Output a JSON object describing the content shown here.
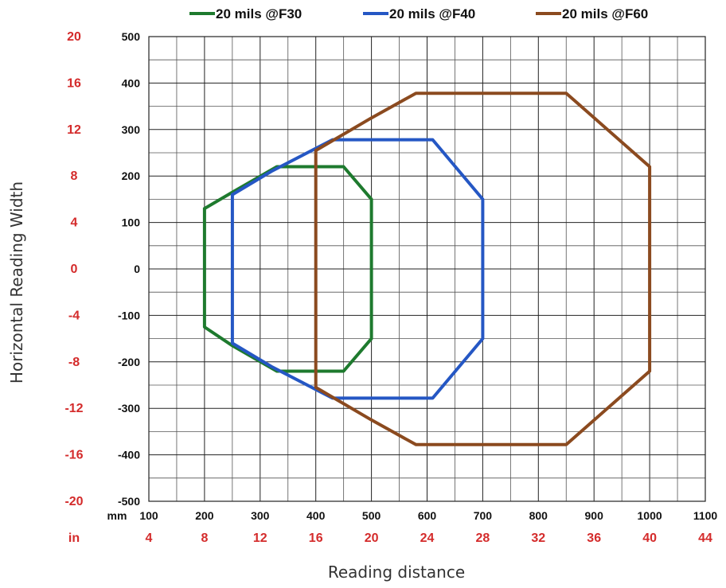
{
  "chart_data": {
    "type": "line",
    "xlabel": "Reading distance",
    "ylabel": "Horizontal Reading Width",
    "x_unit_primary": "mm",
    "x_unit_secondary": "in",
    "xlim": [
      100,
      1100
    ],
    "ylim": [
      -500,
      500
    ],
    "x_ticks_mm": [
      "100",
      "200",
      "300",
      "400",
      "500",
      "600",
      "700",
      "800",
      "900",
      "1000",
      "1100"
    ],
    "x_ticks_in": [
      "4",
      "8",
      "12",
      "16",
      "20",
      "24",
      "28",
      "32",
      "36",
      "40",
      "44"
    ],
    "y_ticks_mm": [
      "500",
      "400",
      "300",
      "200",
      "100",
      "0",
      "-100",
      "-200",
      "-300",
      "-400",
      "-500"
    ],
    "y_ticks_in": [
      "20",
      "16",
      "12",
      "8",
      "4",
      "0",
      "-4",
      "-8",
      "-12",
      "-16",
      "-20"
    ],
    "grid": true,
    "legend_position": "top",
    "series": [
      {
        "name": "20 mils @F30",
        "color": "#1e7a2e",
        "x": [
          200,
          250,
          330,
          450,
          500,
          500,
          450,
          330,
          250,
          200,
          200
        ],
        "y": [
          130,
          165,
          220,
          220,
          150,
          -150,
          -220,
          -220,
          -165,
          -125,
          130
        ]
      },
      {
        "name": "20 mils @F40",
        "color": "#2557c4",
        "x": [
          250,
          320,
          430,
          610,
          700,
          700,
          610,
          430,
          320,
          250,
          250
        ],
        "y": [
          160,
          210,
          278,
          278,
          150,
          -150,
          -278,
          -278,
          -210,
          -160,
          160
        ]
      },
      {
        "name": "20 mils @F60",
        "color": "#8b4a1f",
        "x": [
          400,
          500,
          580,
          850,
          1000,
          1000,
          850,
          580,
          500,
          400,
          400
        ],
        "y": [
          255,
          325,
          378,
          378,
          220,
          -220,
          -378,
          -378,
          -325,
          -255,
          255
        ]
      }
    ]
  }
}
